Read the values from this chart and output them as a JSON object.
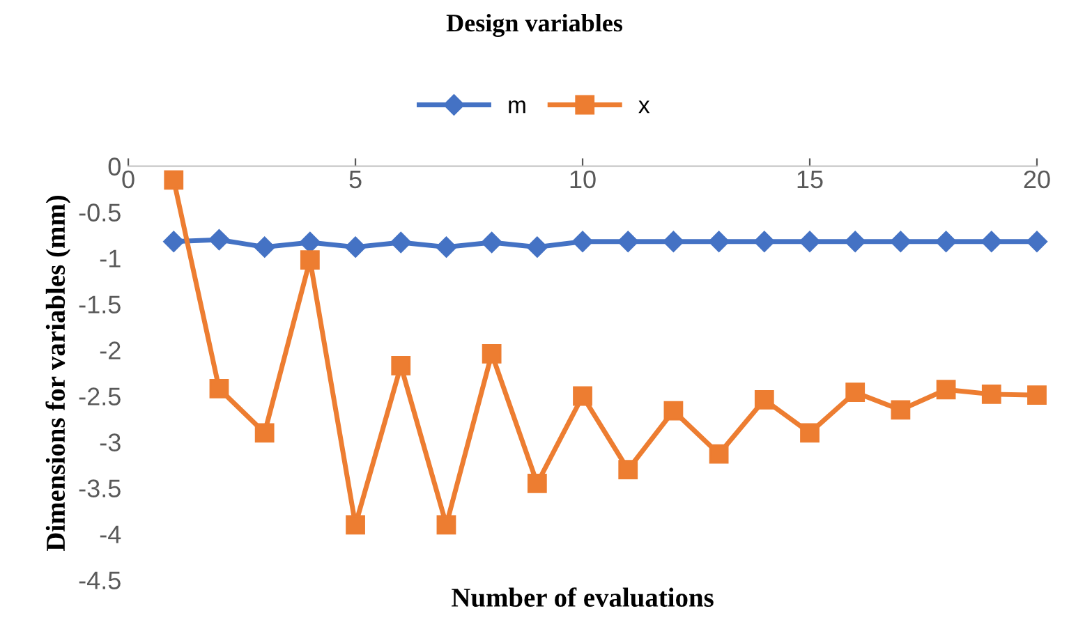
{
  "chart_data": {
    "type": "line",
    "title": "Design variables",
    "xlabel": "Number of evaluations",
    "ylabel": "Dimensions for variables (mm)",
    "x": [
      1,
      2,
      3,
      4,
      5,
      6,
      7,
      8,
      9,
      10,
      11,
      12,
      13,
      14,
      15,
      16,
      17,
      18,
      19,
      20
    ],
    "series": [
      {
        "name": "m",
        "color": "#4472c4",
        "marker": "diamond",
        "values": [
          -0.82,
          -0.8,
          -0.88,
          -0.83,
          -0.88,
          -0.83,
          -0.88,
          -0.83,
          -0.88,
          -0.82,
          -0.82,
          -0.82,
          -0.82,
          -0.82,
          -0.82,
          -0.82,
          -0.82,
          -0.82,
          -0.82,
          -0.82
        ]
      },
      {
        "name": "x",
        "color": "#ed7d31",
        "marker": "square",
        "values": [
          -0.15,
          -2.42,
          -2.9,
          -1.02,
          -3.9,
          -2.17,
          -3.9,
          -2.04,
          -3.45,
          -2.5,
          -3.3,
          -2.66,
          -3.13,
          -2.54,
          -2.9,
          -2.46,
          -2.65,
          -2.43,
          -2.48,
          -2.49
        ]
      }
    ],
    "xlim": [
      0,
      20
    ],
    "xticks": [
      0,
      5,
      10,
      15,
      20
    ],
    "ylim": [
      -4.5,
      0
    ],
    "yticks": [
      0,
      -0.5,
      -1,
      -1.5,
      -2,
      -2.5,
      -3,
      -3.5,
      -4,
      -4.5
    ],
    "grid": false,
    "legend": "top",
    "line_style": "solid"
  }
}
